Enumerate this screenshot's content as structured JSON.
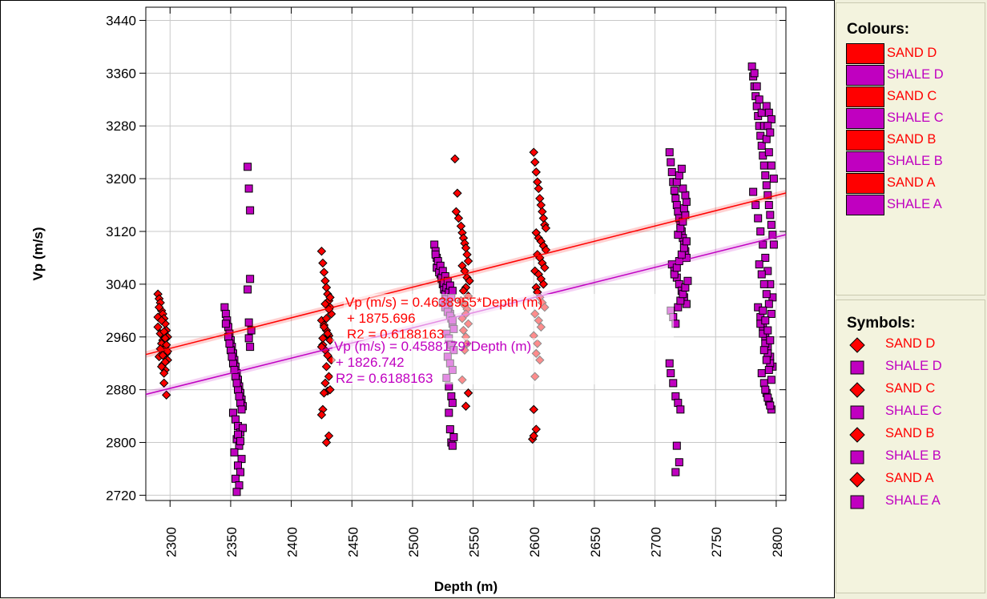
{
  "chart_data": {
    "type": "scatter",
    "xlabel": "Depth  (m)",
    "ylabel": "Vp (m/s)",
    "xlim": [
      2280,
      2808
    ],
    "ylim": [
      2712,
      3460
    ],
    "x_ticks": [
      2300,
      2350,
      2400,
      2450,
      2500,
      2550,
      2600,
      2650,
      2700,
      2750,
      2800
    ],
    "y_ticks": [
      2720,
      2800,
      2880,
      2960,
      3040,
      3120,
      3200,
      3280,
      3360,
      3440
    ],
    "grid": true,
    "series": [
      {
        "name": "SAND D",
        "marker": "diamond",
        "color": "#ff0000",
        "x": [
          2290,
          2291,
          2292,
          2293,
          2294,
          2295,
          2296,
          2297,
          2298,
          2290,
          2292,
          2294,
          2296,
          2297,
          2293,
          2295,
          2291,
          2298,
          2294,
          2296,
          2295,
          2290,
          2293,
          2297,
          2296,
          2292,
          2294,
          2295,
          2291,
          2296,
          2298,
          2293,
          2295,
          2297
        ],
        "y": [
          3025,
          3018,
          3012,
          3000,
          2995,
          2988,
          2980,
          2970,
          2960,
          2975,
          2965,
          2955,
          2945,
          2935,
          2950,
          2940,
          2930,
          2925,
          2918,
          2910,
          2905,
          2990,
          2985,
          2948,
          2922,
          2942,
          2932,
          2968,
          3005,
          2958,
          2938,
          2915,
          2890,
          2872
        ]
      },
      {
        "name": "SAND C",
        "marker": "diamond",
        "color": "#ff0000",
        "x": [
          2425,
          2426,
          2427,
          2428,
          2429,
          2430,
          2431,
          2432,
          2433,
          2425,
          2427,
          2429,
          2431,
          2432,
          2426,
          2428,
          2430,
          2433,
          2427,
          2429,
          2431,
          2428,
          2430,
          2426,
          2432,
          2425,
          2429,
          2431,
          2428,
          2430,
          2427,
          2432,
          2426,
          2425,
          2431,
          2429
        ],
        "y": [
          3090,
          3072,
          3058,
          3045,
          3035,
          3025,
          3015,
          3005,
          2995,
          2985,
          2978,
          2970,
          2962,
          2955,
          2948,
          2940,
          2932,
          2925,
          2975,
          2988,
          3002,
          3010,
          2965,
          2958,
          3020,
          2945,
          2915,
          2900,
          2890,
          2878,
          2875,
          2880,
          2850,
          2842,
          2810,
          2800
        ]
      },
      {
        "name": "SAND B",
        "marker": "diamond",
        "color": "#ff0000",
        "x": [
          2535,
          2537,
          2536,
          2538,
          2540,
          2541,
          2542,
          2543,
          2544,
          2545,
          2546,
          2541,
          2543,
          2545,
          2547,
          2544,
          2542,
          2546,
          2540,
          2543,
          2545,
          2544,
          2541,
          2546,
          2542,
          2544,
          2545,
          2543,
          2541,
          2546,
          2544
        ],
        "y": [
          3230,
          3178,
          3150,
          3140,
          3128,
          3118,
          3110,
          3102,
          3095,
          3085,
          3075,
          3068,
          3060,
          3050,
          3045,
          3035,
          3030,
          3022,
          3015,
          3008,
          3002,
          2995,
          2988,
          2980,
          2970,
          2960,
          2950,
          2940,
          2895,
          2875,
          2855
        ]
      },
      {
        "name": "SAND A",
        "marker": "diamond",
        "color": "#ff0000",
        "x": [
          2600,
          2601,
          2602,
          2603,
          2604,
          2605,
          2606,
          2607,
          2608,
          2609,
          2610,
          2602,
          2604,
          2606,
          2608,
          2610,
          2603,
          2605,
          2607,
          2609,
          2601,
          2604,
          2606,
          2608,
          2602,
          2603,
          2605,
          2607,
          2609,
          2601,
          2604,
          2606,
          2600,
          2603,
          2602,
          2605,
          2601,
          2600,
          2602,
          2599,
          2600
        ],
        "y": [
          3240,
          3225,
          3210,
          3195,
          3185,
          3170,
          3160,
          3150,
          3140,
          3130,
          3125,
          3118,
          3110,
          3105,
          3098,
          3092,
          3085,
          3080,
          3072,
          3065,
          3060,
          3055,
          3048,
          3040,
          3035,
          3028,
          3020,
          3012,
          3005,
          2995,
          2985,
          2975,
          2962,
          2950,
          2935,
          2925,
          2900,
          2850,
          2820,
          2805,
          2810
        ]
      },
      {
        "name": "SHALE D",
        "marker": "square",
        "color": "#c000c0",
        "x": [
          2345,
          2346,
          2347,
          2348,
          2349,
          2350,
          2351,
          2352,
          2353,
          2354,
          2355,
          2356,
          2357,
          2358,
          2359,
          2360,
          2348,
          2350,
          2352,
          2354,
          2356,
          2358,
          2346,
          2349,
          2351,
          2353,
          2355,
          2357,
          2359,
          2352,
          2354,
          2356,
          2358,
          2355,
          2357,
          2353,
          2359,
          2356,
          2358,
          2354,
          2357,
          2355,
          2360,
          2356,
          2358,
          2364,
          2365,
          2366,
          2366,
          2364,
          2365,
          2367,
          2365,
          2366
        ],
        "y": [
          3005,
          2995,
          2985,
          2975,
          2965,
          2955,
          2945,
          2935,
          2925,
          2915,
          2905,
          2895,
          2885,
          2875,
          2865,
          2855,
          2960,
          2940,
          2920,
          2900,
          2880,
          2860,
          2980,
          2950,
          2930,
          2910,
          2890,
          2870,
          2850,
          2845,
          2835,
          2825,
          2815,
          2805,
          2795,
          2785,
          2775,
          2765,
          2755,
          2745,
          2735,
          2725,
          2822,
          2812,
          2802,
          3218,
          3185,
          3152,
          3048,
          3032,
          2982,
          2970,
          2958,
          2945
        ]
      },
      {
        "name": "SHALE C",
        "marker": "square",
        "color": "#c000c0",
        "x": [
          2518,
          2519,
          2520,
          2521,
          2522,
          2523,
          2524,
          2525,
          2526,
          2527,
          2528,
          2529,
          2530,
          2531,
          2532,
          2533,
          2534,
          2520,
          2522,
          2524,
          2526,
          2528,
          2530,
          2532,
          2519,
          2521,
          2523,
          2525,
          2527,
          2529,
          2531,
          2533,
          2525,
          2527,
          2529,
          2531,
          2533,
          2528,
          2530,
          2532,
          2534,
          2529,
          2531,
          2533,
          2528,
          2530,
          2532,
          2533,
          2530,
          2531,
          2532,
          2533,
          2534
        ],
        "y": [
          3100,
          3090,
          3080,
          3070,
          3062,
          3055,
          3048,
          3040,
          3032,
          3025,
          3018,
          3010,
          3002,
          2995,
          2988,
          2980,
          2972,
          3065,
          3058,
          3050,
          3042,
          3035,
          3028,
          3020,
          3085,
          3075,
          3068,
          3060,
          3052,
          3045,
          3038,
          3030,
          3012,
          3005,
          2998,
          2992,
          2985,
          2965,
          2958,
          2948,
          2940,
          2930,
          2920,
          2910,
          2898,
          2885,
          2870,
          2860,
          2845,
          2820,
          2800,
          2795,
          2808
        ]
      },
      {
        "name": "SHALE B",
        "marker": "square",
        "color": "#c000c0",
        "x": [
          2712,
          2713,
          2714,
          2715,
          2716,
          2717,
          2718,
          2719,
          2720,
          2721,
          2722,
          2723,
          2724,
          2725,
          2726,
          2714,
          2716,
          2718,
          2720,
          2722,
          2724,
          2726,
          2713,
          2715,
          2717,
          2719,
          2721,
          2723,
          2725,
          2727,
          2716,
          2718,
          2720,
          2722,
          2724,
          2726,
          2719,
          2721,
          2723,
          2725,
          2724,
          2726,
          2725,
          2723,
          2718,
          2720,
          2722,
          2712,
          2713,
          2715,
          2717,
          2719,
          2721,
          2718,
          2720,
          2717
        ],
        "y": [
          3240,
          3225,
          3210,
          3195,
          3182,
          3170,
          3160,
          3150,
          3140,
          3130,
          3120,
          3110,
          3100,
          3090,
          3080,
          3070,
          3060,
          3050,
          3040,
          3030,
          3020,
          3010,
          3000,
          2990,
          2980,
          3005,
          3015,
          3025,
          3035,
          3045,
          3055,
          3065,
          3075,
          3085,
          3095,
          3105,
          3115,
          3125,
          3135,
          3145,
          3155,
          3165,
          3175,
          3185,
          3195,
          3205,
          3215,
          2920,
          2905,
          2890,
          2870,
          2860,
          2850,
          2795,
          2770,
          2755
        ]
      },
      {
        "name": "SHALE A",
        "marker": "square",
        "color": "#c000c0",
        "x": [
          2780,
          2781,
          2782,
          2783,
          2784,
          2785,
          2786,
          2787,
          2788,
          2789,
          2790,
          2791,
          2792,
          2793,
          2794,
          2795,
          2796,
          2797,
          2798,
          2782,
          2784,
          2786,
          2788,
          2790,
          2792,
          2794,
          2796,
          2798,
          2781,
          2783,
          2785,
          2787,
          2789,
          2791,
          2793,
          2795,
          2797,
          2785,
          2787,
          2789,
          2791,
          2793,
          2795,
          2797,
          2786,
          2788,
          2790,
          2792,
          2794,
          2796,
          2787,
          2789,
          2791,
          2793,
          2795,
          2788,
          2790,
          2792,
          2794,
          2796,
          2789,
          2791,
          2793,
          2795,
          2790,
          2792,
          2794,
          2796,
          2791,
          2793,
          2795,
          2792,
          2794,
          2796,
          2793,
          2795
        ],
        "y": [
          3370,
          3355,
          3340,
          3325,
          3310,
          3295,
          3280,
          3265,
          3250,
          3235,
          3220,
          3205,
          3190,
          3175,
          3160,
          3145,
          3130,
          3115,
          3100,
          3360,
          3340,
          3320,
          3300,
          3280,
          3260,
          3240,
          3220,
          3200,
          3180,
          3160,
          3140,
          3120,
          3100,
          3080,
          3060,
          3040,
          3020,
          3005,
          2990,
          2975,
          2960,
          2945,
          2930,
          2915,
          3070,
          3055,
          3040,
          3025,
          3010,
          2995,
          2980,
          2965,
          2950,
          2935,
          2920,
          2905,
          2890,
          2875,
          2862,
          2850,
          3000,
          2985,
          2970,
          2955,
          2940,
          2925,
          2910,
          2895,
          2880,
          2868,
          2856,
          3310,
          3300,
          3290,
          3280,
          3270
        ]
      }
    ],
    "regression_lines": [
      {
        "name": "SAND",
        "color": "#ff0000",
        "slope": 0.4638955,
        "intercept": 1875.696
      },
      {
        "name": "SHALE",
        "color": "#c000c0",
        "slope": 0.4588179,
        "intercept": 1826.742
      }
    ],
    "annotations": [
      {
        "line1": "Vp  (m/s) = 0.4638955*Depth  (m)",
        "line2": "+ 1875.696",
        "line3": "R2 = 0.6188163",
        "color": "#ff0000"
      },
      {
        "line1": "Vp  (m/s) = 0.4588179*Depth  (m)",
        "line2": "+ 1826.742",
        "line3": "R2 = 0.6188163",
        "color": "#c000c0"
      }
    ]
  },
  "legend": {
    "colours_title": "Colours:",
    "colours": [
      {
        "label": "SAND D",
        "color": "#ff0000"
      },
      {
        "label": "SHALE D",
        "color": "#c000c0"
      },
      {
        "label": "SAND C",
        "color": "#ff0000"
      },
      {
        "label": "SHALE C",
        "color": "#c000c0"
      },
      {
        "label": "SAND B",
        "color": "#ff0000"
      },
      {
        "label": "SHALE B",
        "color": "#c000c0"
      },
      {
        "label": "SAND A",
        "color": "#ff0000"
      },
      {
        "label": "SHALE A",
        "color": "#c000c0"
      }
    ],
    "symbols_title": "Symbols:",
    "symbols": [
      {
        "label": "SAND D",
        "shape": "diamond-icon",
        "color": "#ff0000"
      },
      {
        "label": "SHALE D",
        "shape": "square-icon",
        "color": "#c000c0"
      },
      {
        "label": "SAND C",
        "shape": "diamond-icon",
        "color": "#ff0000"
      },
      {
        "label": "SHALE C",
        "shape": "square-icon",
        "color": "#c000c0"
      },
      {
        "label": "SAND B",
        "shape": "diamond-icon",
        "color": "#ff0000"
      },
      {
        "label": "SHALE B",
        "shape": "square-icon",
        "color": "#c000c0"
      },
      {
        "label": "SAND A",
        "shape": "diamond-icon",
        "color": "#ff0000"
      },
      {
        "label": "SHALE A",
        "shape": "square-icon",
        "color": "#c000c0"
      }
    ]
  }
}
